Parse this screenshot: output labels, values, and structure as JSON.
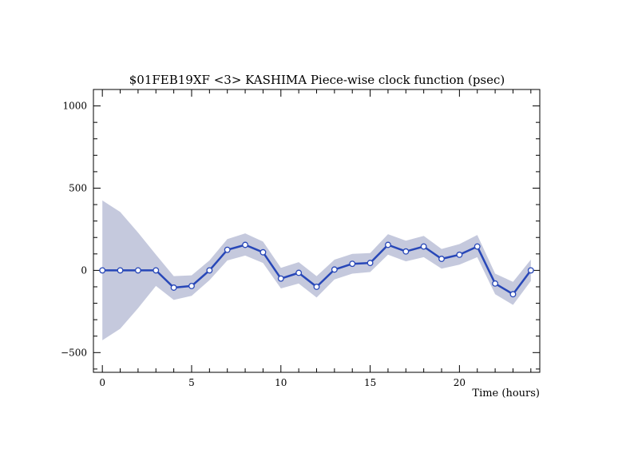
{
  "chart_data": {
    "type": "line",
    "title": "$01FEB19XF <3>  KASHIMA   Piece-wise clock function (psec)",
    "xlabel": "Time (hours)",
    "ylabel": "",
    "xlim": [
      -0.5,
      24.5
    ],
    "ylim": [
      -620,
      1100
    ],
    "x_ticks": [
      0,
      5,
      10,
      15,
      20
    ],
    "y_ticks": [
      -500,
      0,
      500,
      1000
    ],
    "x_tick_labels": [
      "0",
      "5",
      "10",
      "15",
      "20"
    ],
    "y_tick_labels": [
      "−500",
      "0",
      "500",
      "1000"
    ],
    "grid": false,
    "colors": {
      "line": "#2747b8",
      "band": "#c5c9dd",
      "marker_fill": "#ffffff"
    },
    "series": [
      {
        "x": [
          0,
          1,
          2,
          3,
          4,
          5,
          6,
          7,
          8,
          9,
          10,
          11,
          12,
          13,
          14,
          15,
          16,
          17,
          18,
          19,
          20,
          21,
          22,
          23,
          24
        ],
        "values": [
          0,
          0,
          0,
          0,
          -105,
          -95,
          0,
          125,
          155,
          110,
          -50,
          -15,
          -100,
          5,
          40,
          45,
          155,
          115,
          145,
          70,
          95,
          145,
          -80,
          -145,
          0
        ],
        "upper": [
          425,
          355,
          230,
          95,
          -35,
          -30,
          60,
          190,
          225,
          175,
          15,
          50,
          -35,
          65,
          100,
          105,
          220,
          180,
          210,
          130,
          160,
          215,
          -20,
          -70,
          65
        ],
        "lower": [
          -425,
          -355,
          -230,
          -95,
          -180,
          -155,
          -60,
          60,
          90,
          45,
          -110,
          -80,
          -165,
          -55,
          -20,
          -10,
          95,
          55,
          80,
          10,
          35,
          80,
          -145,
          -210,
          -65
        ]
      }
    ]
  }
}
